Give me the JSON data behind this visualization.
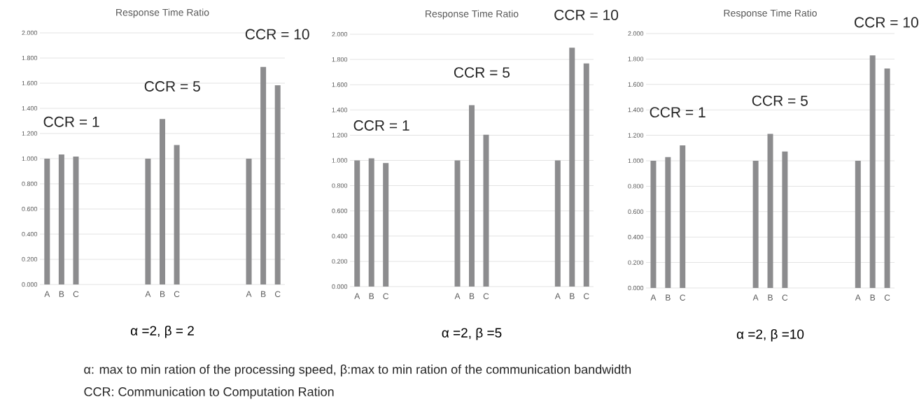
{
  "chart_data": [
    {
      "type": "bar",
      "title": "Response Time Ratio",
      "xlabel": "α =2, β = 2",
      "color": "#8c8c8e",
      "grid": "y",
      "categories": [
        "A",
        "B",
        "C",
        null,
        null,
        null,
        null,
        "A",
        "B",
        "C",
        null,
        null,
        null,
        null,
        "A",
        "B",
        "C"
      ],
      "values": [
        1.0,
        1.033,
        1.017,
        null,
        null,
        null,
        null,
        1.0,
        1.315,
        1.109,
        null,
        null,
        null,
        null,
        1.0,
        1.729,
        1.584
      ],
      "ylim": [
        0,
        2
      ],
      "yticks": [
        {
          "value": 0,
          "label": "0.000"
        },
        {
          "value": 0.2,
          "label": "0.200"
        },
        {
          "value": 0.4,
          "label": "0.400"
        },
        {
          "value": 0.6,
          "label": "0.600"
        },
        {
          "value": 0.8,
          "label": "0.800"
        },
        {
          "value": 1,
          "label": "1.000"
        },
        {
          "value": 1.2,
          "label": "1.200"
        },
        {
          "value": 1.4,
          "label": "1.400"
        },
        {
          "value": 1.6,
          "label": "1.600"
        },
        {
          "value": 1.8,
          "label": "1.800"
        },
        {
          "value": 2,
          "label": "2.000"
        }
      ],
      "annotations": [
        "CCR = 1",
        "CCR = 5",
        "CCR = 10"
      ]
    },
    {
      "type": "bar",
      "title": "Response Time Ratio",
      "xlabel": "α =2, β =5",
      "color": "#8c8c8e",
      "grid": "y",
      "categories": [
        "A",
        "B",
        "C",
        null,
        null,
        null,
        null,
        "A",
        "B",
        "C",
        null,
        null,
        null,
        null,
        "A",
        "B",
        "C"
      ],
      "values": [
        1.0,
        1.017,
        0.979,
        null,
        null,
        null,
        null,
        1.0,
        1.437,
        1.204,
        null,
        null,
        null,
        null,
        1.0,
        1.893,
        1.769
      ],
      "ylim": [
        0,
        2
      ],
      "yticks": [
        {
          "value": 0,
          "label": "0.000"
        },
        {
          "value": 0.2,
          "label": "0.200"
        },
        {
          "value": 0.4,
          "label": "0.400"
        },
        {
          "value": 0.6,
          "label": "0.600"
        },
        {
          "value": 0.8,
          "label": "0.800"
        },
        {
          "value": 1,
          "label": "1.000"
        },
        {
          "value": 1.2,
          "label": "1.200"
        },
        {
          "value": 1.4,
          "label": "1.400"
        },
        {
          "value": 1.6,
          "label": "1.600"
        },
        {
          "value": 1.8,
          "label": "1.800"
        },
        {
          "value": 2,
          "label": "2.000"
        }
      ],
      "annotations": [
        "CCR = 1",
        "CCR = 5",
        "CCR = 10"
      ]
    },
    {
      "type": "bar",
      "title": "Response Time Ratio",
      "xlabel": "α =2, β =10",
      "color": "#8c8c8e",
      "grid": "y",
      "categories": [
        "A",
        "B",
        "C",
        null,
        null,
        null,
        null,
        "A",
        "B",
        "C",
        null,
        null,
        null,
        null,
        "A",
        "B",
        "C"
      ],
      "values": [
        1.0,
        1.029,
        1.121,
        null,
        null,
        null,
        null,
        1.0,
        1.212,
        1.073,
        null,
        null,
        null,
        null,
        1.0,
        1.828,
        1.725
      ],
      "ylim": [
        0,
        2
      ],
      "yticks": [
        {
          "value": 0,
          "label": "0.000"
        },
        {
          "value": 0.2,
          "label": "0.200"
        },
        {
          "value": 0.4,
          "label": "0.400"
        },
        {
          "value": 0.6,
          "label": "0.600"
        },
        {
          "value": 0.8,
          "label": "0.800"
        },
        {
          "value": 1,
          "label": "1.000"
        },
        {
          "value": 1.2,
          "label": "1.200"
        },
        {
          "value": 1.4,
          "label": "1.400"
        },
        {
          "value": 1.6,
          "label": "1.600"
        },
        {
          "value": 1.8,
          "label": "1.800"
        },
        {
          "value": 2,
          "label": "2.000"
        }
      ],
      "annotations": [
        "CCR = 1",
        "CCR = 5",
        "CCR = 10"
      ]
    },
    {
      "type": "other",
      "annotations": [
        "α: max to min ration of the processing speed, β:max to min ration of the communication bandwidth",
        "CCR:  Communication to Computation Ration"
      ]
    }
  ]
}
